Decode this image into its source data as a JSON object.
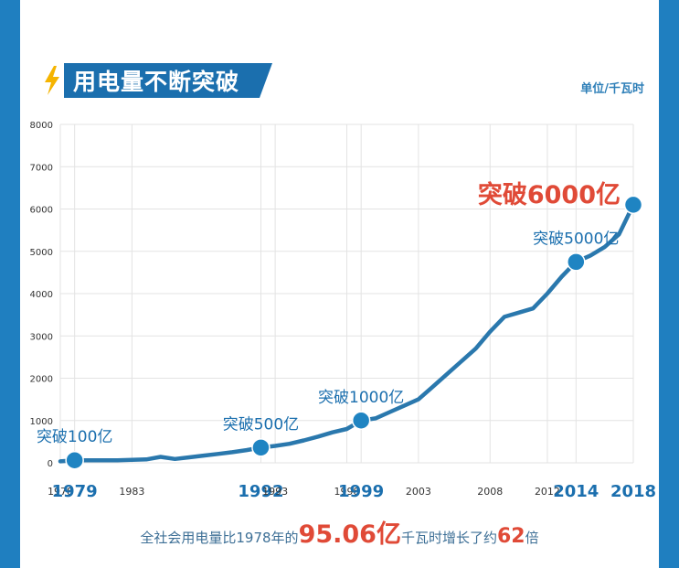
{
  "title": "用电量不断突破",
  "unit": "单位/千瓦时",
  "footer": {
    "prefix": "全社会用电量比1978年的",
    "value": "95.06",
    "value_unit": "亿",
    "middle": "千瓦时增长了约",
    "multiple": "62",
    "suffix": "倍"
  },
  "colors": {
    "frame": "#1f7fc0",
    "title_bg": "#1b6fae",
    "line": "#2a78ad",
    "highlight": "#e04a37",
    "bolt": "#f5b400"
  },
  "chart_data": {
    "type": "line",
    "x": [
      1978,
      1979,
      1980,
      1981,
      1982,
      1983,
      1984,
      1985,
      1986,
      1987,
      1988,
      1989,
      1990,
      1991,
      1992,
      1993,
      1994,
      1995,
      1996,
      1997,
      1998,
      1999,
      2000,
      2001,
      2002,
      2003,
      2004,
      2005,
      2006,
      2007,
      2008,
      2009,
      2010,
      2011,
      2012,
      2013,
      2014,
      2015,
      2016,
      2017,
      2018
    ],
    "values": [
      35,
      60,
      60,
      60,
      60,
      70,
      80,
      140,
      90,
      130,
      170,
      210,
      250,
      300,
      360,
      400,
      450,
      530,
      620,
      720,
      800,
      1000,
      1050,
      1200,
      1350,
      1500,
      1800,
      2100,
      2400,
      2700,
      3100,
      3450,
      3550,
      3650,
      4000,
      4400,
      4750,
      4900,
      5100,
      5400,
      6100
    ],
    "ylim": [
      0,
      8000
    ],
    "yticks": [
      0,
      1000,
      2000,
      3000,
      4000,
      5000,
      6000,
      7000,
      8000
    ],
    "xticks": [
      {
        "year": 1978,
        "label": "1978",
        "big": false
      },
      {
        "year": 1979,
        "label": "1979",
        "big": true
      },
      {
        "year": 1983,
        "label": "1983",
        "big": false
      },
      {
        "year": 1992,
        "label": "1992",
        "big": true
      },
      {
        "year": 1993,
        "label": "1993",
        "big": false
      },
      {
        "year": 1998,
        "label": "1998",
        "big": false
      },
      {
        "year": 1999,
        "label": "1999",
        "big": true
      },
      {
        "year": 2003,
        "label": "2003",
        "big": false
      },
      {
        "year": 2008,
        "label": "2008",
        "big": false
      },
      {
        "year": 2012,
        "label": "2012",
        "big": false
      },
      {
        "year": 2014,
        "label": "2014",
        "big": true
      },
      {
        "year": 2018,
        "label": "2018",
        "big": true
      }
    ],
    "grid": true,
    "milestones": [
      {
        "year": 1979,
        "value": 60,
        "label": "突破100亿",
        "highlight": false
      },
      {
        "year": 1992,
        "value": 360,
        "label": "突破500亿",
        "highlight": false
      },
      {
        "year": 1999,
        "value": 1000,
        "label": "突破1000亿",
        "highlight": false
      },
      {
        "year": 2014,
        "value": 4750,
        "label": "突破5000亿",
        "highlight": false
      },
      {
        "year": 2018,
        "value": 6100,
        "label": "突破6000亿",
        "highlight": true
      }
    ]
  }
}
